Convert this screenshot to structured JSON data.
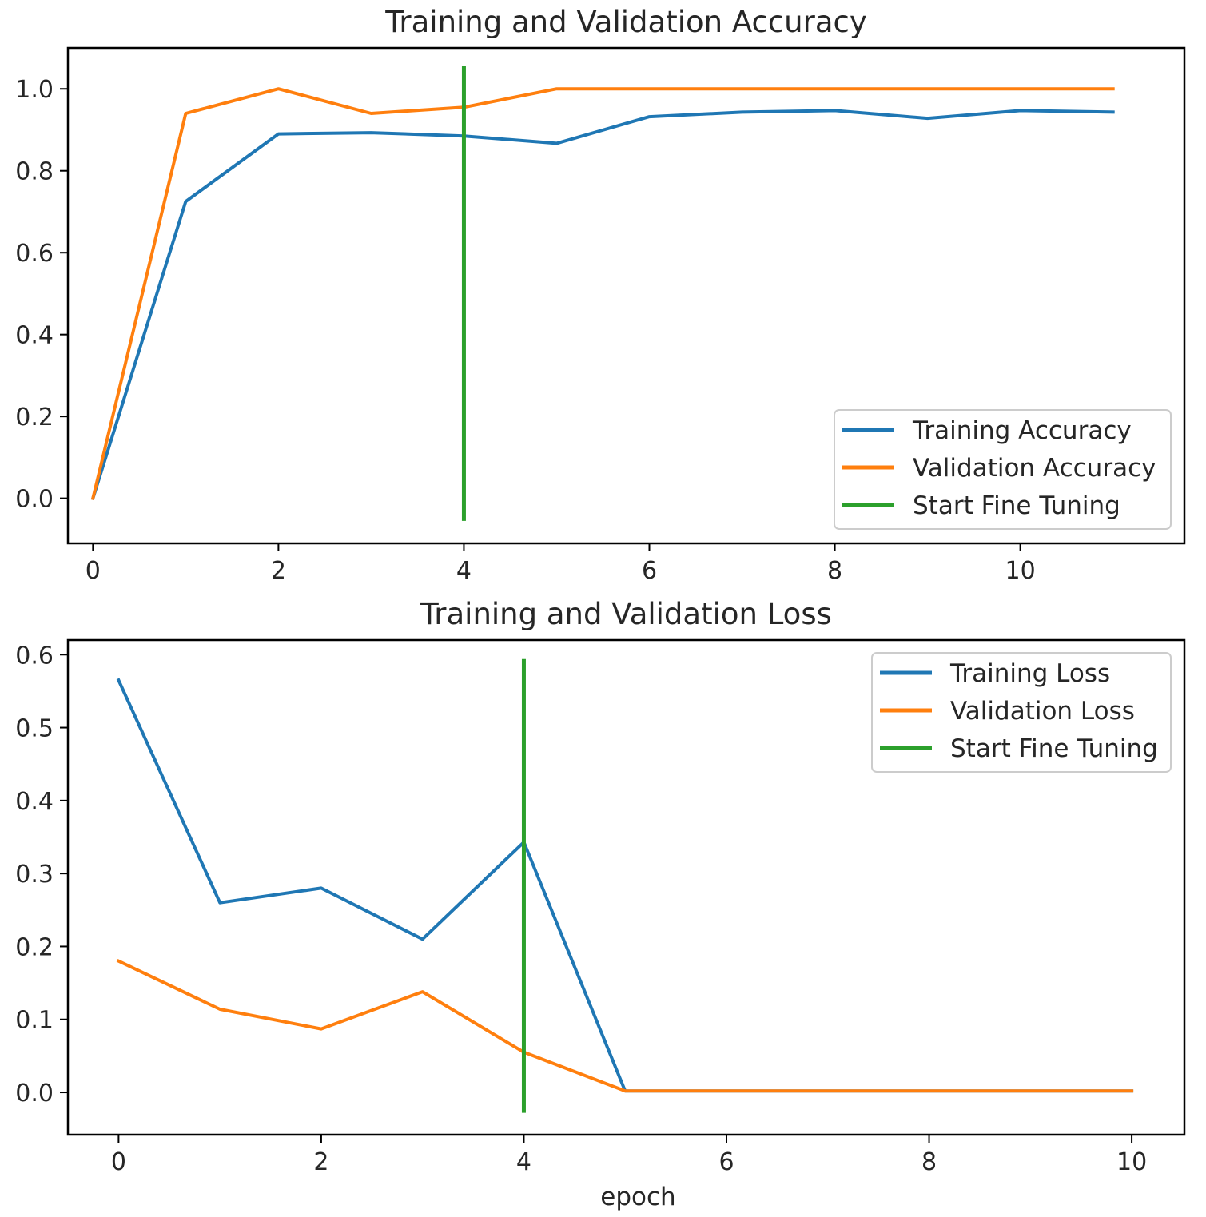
{
  "colors": {
    "training": "#1f77b4",
    "validation": "#ff7f0e",
    "fine_tune": "#2ca02c",
    "axes": "#000000",
    "legend_border": "#cccccc"
  },
  "chart_data": [
    {
      "type": "line",
      "title": "Training and Validation Accuracy",
      "xlabel": "",
      "ylabel": "",
      "xlim": [
        -0.27,
        11.77
      ],
      "ylim": [
        -0.11,
        1.1
      ],
      "xticks": [
        0,
        2,
        4,
        6,
        8,
        10
      ],
      "xtick_labels": [
        "0",
        "2",
        "4",
        "6",
        "8",
        "10"
      ],
      "yticks": [
        0.0,
        0.2,
        0.4,
        0.6,
        0.8,
        1.0
      ],
      "ytick_labels": [
        "0.0",
        "0.2",
        "0.4",
        "0.6",
        "0.8",
        "1.0"
      ],
      "legend_placement": "lower right",
      "series": [
        {
          "name": "Training Accuracy",
          "x": [
            0,
            1,
            2,
            3,
            4,
            5,
            6,
            7,
            8,
            9,
            10,
            11
          ],
          "values": [
            0.0,
            0.725,
            0.89,
            0.893,
            0.885,
            0.867,
            0.932,
            0.943,
            0.947,
            0.928,
            0.947,
            0.943
          ]
        },
        {
          "name": "Validation Accuracy",
          "x": [
            0,
            1,
            2,
            3,
            4,
            5,
            6,
            7,
            8,
            9,
            10,
            11
          ],
          "values": [
            0.0,
            0.94,
            1.0,
            0.94,
            0.955,
            1.0,
            1.0,
            1.0,
            1.0,
            1.0,
            1.0,
            1.0
          ]
        }
      ],
      "vline": {
        "name": "Start Fine Tuning",
        "x": 4,
        "y": [
          -0.055,
          1.055
        ]
      }
    },
    {
      "type": "line",
      "title": "Training and Validation Loss",
      "xlabel": "epoch",
      "ylabel": "",
      "xlim": [
        -0.5,
        10.52
      ],
      "ylim": [
        -0.058,
        0.62
      ],
      "xticks": [
        0,
        2,
        4,
        6,
        8,
        10
      ],
      "xtick_labels": [
        "0",
        "2",
        "4",
        "6",
        "8",
        "10"
      ],
      "yticks": [
        0.0,
        0.1,
        0.2,
        0.3,
        0.4,
        0.5,
        0.6
      ],
      "ytick_labels": [
        "0.0",
        "0.1",
        "0.2",
        "0.3",
        "0.4",
        "0.5",
        "0.6"
      ],
      "legend_placement": "upper right",
      "series": [
        {
          "name": "Training Loss",
          "x": [
            0,
            1,
            2,
            3,
            4,
            5,
            6,
            7,
            8,
            9,
            10
          ],
          "values": [
            0.565,
            0.26,
            0.28,
            0.21,
            0.343,
            0.002,
            0.002,
            0.002,
            0.002,
            0.002,
            0.002
          ]
        },
        {
          "name": "Validation Loss",
          "x": [
            0,
            1,
            2,
            3,
            4,
            5,
            6,
            7,
            8,
            9,
            10
          ],
          "values": [
            0.18,
            0.114,
            0.087,
            0.138,
            0.055,
            0.002,
            0.002,
            0.002,
            0.002,
            0.002,
            0.002
          ]
        }
      ],
      "vline": {
        "name": "Start Fine Tuning",
        "x": 4,
        "y": [
          -0.028,
          0.594
        ]
      }
    }
  ]
}
